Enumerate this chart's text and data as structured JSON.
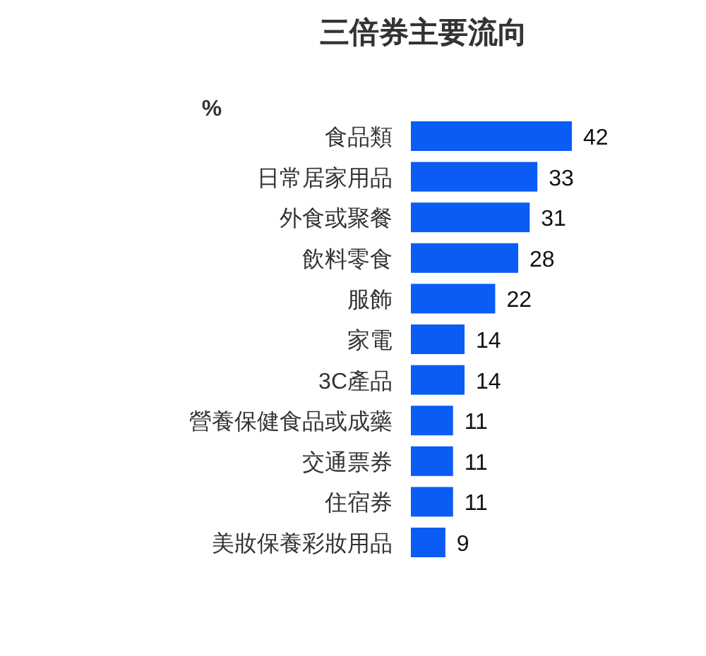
{
  "chart_data": {
    "type": "bar",
    "orientation": "horizontal",
    "title": "三倍券主要流向",
    "xlabel": "%",
    "categories": [
      "食品類",
      "日常居家用品",
      "外食或聚餐",
      "飲料零食",
      "服飾",
      "家電",
      "3C產品",
      "營養保健食品或成藥",
      "交通票券",
      "住宿券",
      "美妝保養彩妝用品"
    ],
    "values": [
      42,
      33,
      31,
      28,
      22,
      14,
      14,
      11,
      11,
      11,
      9
    ],
    "color": "#0a5cf5",
    "data_labels": true
  }
}
